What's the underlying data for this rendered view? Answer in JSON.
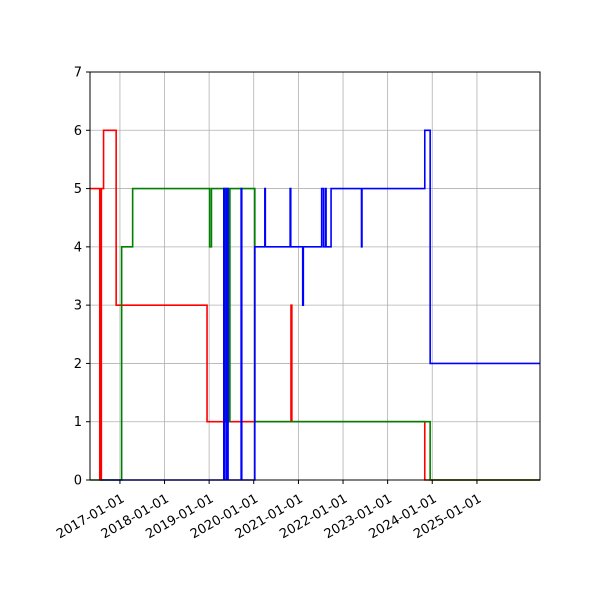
{
  "chart_data": {
    "type": "line",
    "title": "",
    "xlabel": "",
    "ylabel": "",
    "x_axis": "date",
    "xlim": [
      "2016-05-01",
      "2026-06-01"
    ],
    "ylim": [
      0,
      7
    ],
    "grid": true,
    "step": "post",
    "x_ticks": [
      "2017-01-01",
      "2018-01-01",
      "2019-01-01",
      "2020-01-01",
      "2021-01-01",
      "2022-01-01",
      "2023-01-01",
      "2024-01-01",
      "2025-01-01"
    ],
    "y_ticks": [
      "0",
      "1",
      "2",
      "3",
      "4",
      "5",
      "6",
      "7"
    ],
    "series": [
      {
        "color": "#ff0000",
        "points": [
          [
            "2016-05-01",
            5
          ],
          [
            "2016-07-20",
            5
          ],
          [
            "2016-07-20",
            0
          ],
          [
            "2016-08-02",
            0
          ],
          [
            "2016-08-02",
            5
          ],
          [
            "2016-08-20",
            5
          ],
          [
            "2016-08-20",
            6
          ],
          [
            "2016-12-01",
            6
          ],
          [
            "2016-12-01",
            3
          ],
          [
            "2018-12-15",
            3
          ],
          [
            "2018-12-15",
            1
          ],
          [
            "2020-11-01",
            1
          ],
          [
            "2020-11-01",
            3
          ],
          [
            "2020-11-08",
            3
          ],
          [
            "2020-11-08",
            1
          ],
          [
            "2023-11-01",
            1
          ],
          [
            "2023-11-01",
            0
          ],
          [
            "2026-06-01",
            0
          ]
        ]
      },
      {
        "color": "#008000",
        "points": [
          [
            "2016-05-01",
            0
          ],
          [
            "2017-01-15",
            0
          ],
          [
            "2017-01-15",
            4
          ],
          [
            "2017-04-15",
            4
          ],
          [
            "2017-04-15",
            5
          ],
          [
            "2019-01-05",
            5
          ],
          [
            "2019-01-05",
            4
          ],
          [
            "2019-01-20",
            4
          ],
          [
            "2019-01-20",
            5
          ],
          [
            "2019-05-01",
            5
          ],
          [
            "2019-05-01",
            1
          ],
          [
            "2019-05-10",
            1
          ],
          [
            "2019-05-10",
            5
          ],
          [
            "2019-05-20",
            5
          ],
          [
            "2019-05-20",
            1
          ],
          [
            "2019-06-01",
            1
          ],
          [
            "2019-06-01",
            5
          ],
          [
            "2019-06-10",
            5
          ],
          [
            "2019-06-10",
            1
          ],
          [
            "2019-06-20",
            1
          ],
          [
            "2019-06-20",
            5
          ],
          [
            "2020-01-10",
            5
          ],
          [
            "2020-01-10",
            1
          ],
          [
            "2023-12-15",
            1
          ],
          [
            "2023-12-15",
            0
          ],
          [
            "2026-06-01",
            0
          ]
        ]
      },
      {
        "color": "#0000ff",
        "points": [
          [
            "2016-08-01",
            0
          ],
          [
            "2019-05-01",
            0
          ],
          [
            "2019-05-01",
            5
          ],
          [
            "2019-05-10",
            5
          ],
          [
            "2019-05-10",
            0
          ],
          [
            "2019-05-25",
            0
          ],
          [
            "2019-05-25",
            5
          ],
          [
            "2019-06-05",
            5
          ],
          [
            "2019-06-05",
            0
          ],
          [
            "2019-09-20",
            0
          ],
          [
            "2019-09-20",
            5
          ],
          [
            "2019-09-25",
            5
          ],
          [
            "2019-09-25",
            0
          ],
          [
            "2020-01-10",
            0
          ],
          [
            "2020-01-10",
            4
          ],
          [
            "2020-04-01",
            4
          ],
          [
            "2020-04-01",
            5
          ],
          [
            "2020-04-05",
            5
          ],
          [
            "2020-04-05",
            4
          ],
          [
            "2020-10-25",
            4
          ],
          [
            "2020-10-25",
            5
          ],
          [
            "2020-10-30",
            5
          ],
          [
            "2020-10-30",
            4
          ],
          [
            "2021-02-05",
            4
          ],
          [
            "2021-02-05",
            3
          ],
          [
            "2021-02-10",
            3
          ],
          [
            "2021-02-10",
            4
          ],
          [
            "2021-07-10",
            4
          ],
          [
            "2021-07-10",
            5
          ],
          [
            "2021-07-25",
            5
          ],
          [
            "2021-07-25",
            4
          ],
          [
            "2021-08-10",
            4
          ],
          [
            "2021-08-10",
            5
          ],
          [
            "2021-08-15",
            5
          ],
          [
            "2021-08-15",
            4
          ],
          [
            "2021-09-25",
            4
          ],
          [
            "2021-09-25",
            5
          ],
          [
            "2022-06-01",
            5
          ],
          [
            "2022-06-01",
            4
          ],
          [
            "2022-06-05",
            4
          ],
          [
            "2022-06-05",
            5
          ],
          [
            "2023-11-01",
            5
          ],
          [
            "2023-11-01",
            6
          ],
          [
            "2023-12-15",
            6
          ],
          [
            "2023-12-15",
            2
          ],
          [
            "2026-06-01",
            2
          ]
        ]
      }
    ]
  }
}
